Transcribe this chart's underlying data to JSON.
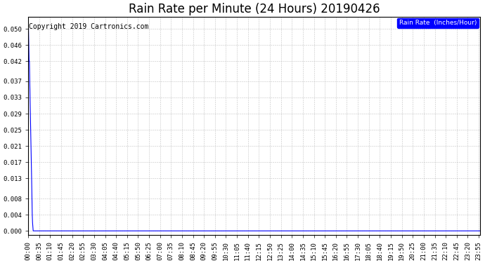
{
  "title": "Rain Rate per Minute (24 Hours) 20190426",
  "copyright_text": "Copyright 2019 Cartronics.com",
  "legend_label": "Rain Rate  (Inches/Hour)",
  "legend_bg": "#0000ff",
  "legend_fg": "#ffffff",
  "line_color": "#0000ff",
  "bg_color": "#ffffff",
  "plot_bg_color": "#ffffff",
  "grid_color": "#aaaaaa",
  "yticks": [
    0.0,
    0.004,
    0.008,
    0.013,
    0.017,
    0.021,
    0.025,
    0.029,
    0.033,
    0.037,
    0.042,
    0.046,
    0.05
  ],
  "ylim": [
    -0.001,
    0.053
  ],
  "total_minutes": 1440,
  "spike_data": [
    [
      0,
      0.05
    ],
    [
      1,
      0.05
    ],
    [
      2,
      0.046
    ],
    [
      3,
      0.042
    ],
    [
      4,
      0.042
    ],
    [
      5,
      0.037
    ],
    [
      6,
      0.033
    ],
    [
      7,
      0.029
    ],
    [
      8,
      0.025
    ],
    [
      9,
      0.021
    ],
    [
      10,
      0.017
    ],
    [
      11,
      0.013
    ],
    [
      12,
      0.008
    ],
    [
      13,
      0.004
    ],
    [
      14,
      0.002
    ],
    [
      15,
      0.001
    ],
    [
      16,
      0.0
    ]
  ],
  "xtick_interval_minutes": 35,
  "title_fontsize": 12,
  "label_fontsize": 6.5,
  "copyright_fontsize": 7
}
